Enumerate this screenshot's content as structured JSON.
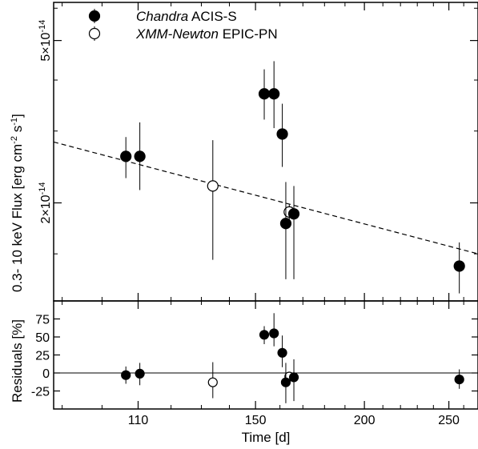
{
  "chart_data": [
    {
      "type": "scatter",
      "panel": "flux",
      "ylabel_prefix": "0.3- 10 keV Flux  [erg cm",
      "ylabel_sup1": "-2",
      "ylabel_mid": " s",
      "ylabel_sup2": "-1",
      "ylabel_suffix": "]",
      "yscale": "log",
      "ylim": [
        1.15e-14,
        6.2e-14
      ],
      "xscale": "log",
      "xlim": [
        88,
        270
      ],
      "y_ticks": [
        {
          "value": 2e-14,
          "mantissa": "2×10",
          "exponent": "-14"
        },
        {
          "value": 5e-14,
          "mantissa": "5×10",
          "exponent": "-14"
        }
      ],
      "legend": {
        "position": "top-left",
        "entries": [
          {
            "series": "chandra",
            "name_italic": "Chandra",
            "name_rest": " ACIS-S",
            "marker": "filled-circle"
          },
          {
            "series": "xmm",
            "name_italic": "XMM-Newton",
            "name_rest": " EPIC-PN",
            "marker": "open-circle"
          }
        ]
      },
      "series": [
        {
          "id": "chandra",
          "marker": "filled-circle",
          "points": [
            {
              "x": 106.5,
              "y": 2.6e-14,
              "err_low": 2.3e-14,
              "err_high": 2.9e-14
            },
            {
              "x": 110.5,
              "y": 2.6e-14,
              "err_low": 2.15e-14,
              "err_high": 3.15e-14
            },
            {
              "x": 153.5,
              "y": 3.7e-14,
              "err_low": 3.2e-14,
              "err_high": 4.25e-14
            },
            {
              "x": 157.5,
              "y": 3.7e-14,
              "err_low": 3.05e-14,
              "err_high": 4.45e-14
            },
            {
              "x": 161.0,
              "y": 2.95e-14,
              "err_low": 2.45e-14,
              "err_high": 3.5e-14
            },
            {
              "x": 162.5,
              "y": 1.78e-14,
              "err_low": 1.3e-14,
              "err_high": 2.25e-14
            },
            {
              "x": 166.0,
              "y": 1.88e-14,
              "err_low": 1.3e-14,
              "err_high": 2.2e-14
            },
            {
              "x": 257.0,
              "y": 1.4e-14,
              "err_low": 1.2e-14,
              "err_high": 1.6e-14
            }
          ]
        },
        {
          "id": "xmm",
          "marker": "open-circle",
          "points": [
            {
              "x": 134.0,
              "y": 2.2e-14,
              "err_low": 1.45e-14,
              "err_high": 2.85e-14
            },
            {
              "x": 164.0,
              "y": 1.9e-14,
              "err_low": 1.82e-14,
              "err_high": 1.98e-14
            }
          ]
        }
      ],
      "fit_line": {
        "style": "dashed",
        "points": [
          {
            "x": 88,
            "y": 2.82e-14
          },
          {
            "x": 270,
            "y": 1.5e-14
          }
        ]
      }
    },
    {
      "type": "scatter",
      "panel": "residuals",
      "ylabel": "Residuals [%]",
      "xlabel": "Time [d]",
      "xscale": "log",
      "xlim": [
        88,
        270
      ],
      "ylim": [
        -50,
        100
      ],
      "y_ticks": [
        -25,
        0,
        25,
        50,
        75
      ],
      "y_tick_labels": [
        "-25",
        "0",
        "25",
        "50",
        "75"
      ],
      "x_ticks": [
        110,
        150,
        200,
        250
      ],
      "x_tick_labels": [
        "110",
        "150",
        "200",
        "250"
      ],
      "reference_line": 0,
      "series": [
        {
          "id": "chandra",
          "marker": "filled-circle",
          "points": [
            {
              "x": 106.5,
              "y": -3,
              "err_low": -15,
              "err_high": 9
            },
            {
              "x": 110.5,
              "y": -1,
              "err_low": -17,
              "err_high": 14
            },
            {
              "x": 153.5,
              "y": 53,
              "err_low": 40,
              "err_high": 65
            },
            {
              "x": 157.5,
              "y": 55,
              "err_low": 37,
              "err_high": 83
            },
            {
              "x": 161.0,
              "y": 28,
              "err_low": 8,
              "err_high": 52
            },
            {
              "x": 162.5,
              "y": -13,
              "err_low": -42,
              "err_high": 14
            },
            {
              "x": 166.0,
              "y": -6,
              "err_low": -39,
              "err_high": 19
            },
            {
              "x": 257.0,
              "y": -9,
              "err_low": -22,
              "err_high": 5
            }
          ]
        },
        {
          "id": "xmm",
          "marker": "open-circle",
          "points": [
            {
              "x": 134.0,
              "y": -13,
              "err_low": -35,
              "err_high": 15
            },
            {
              "x": 164.0,
              "y": -5,
              "err_low": -8,
              "err_high": -2
            }
          ]
        }
      ]
    }
  ]
}
